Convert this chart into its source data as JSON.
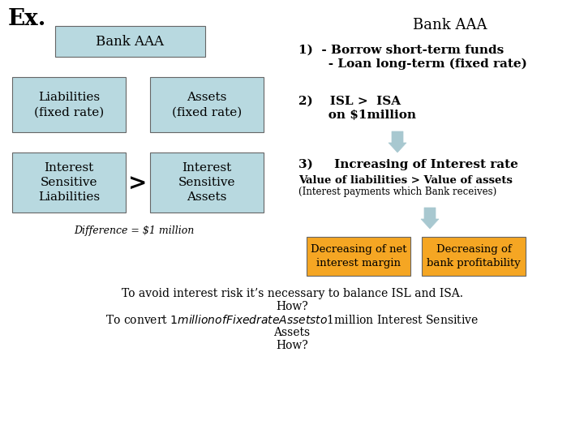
{
  "bg_color": "#ffffff",
  "box_color": "#b8d9e0",
  "orange_color": "#f5a623",
  "arrow_color": "#a8c8d0",
  "title_ex": "Ex.",
  "bank_aaa_box_text": "Bank AAA",
  "liabilities_fixed": "Liabilities\n(fixed rate)",
  "assets_fixed": "Assets\n(fixed rate)",
  "isl_text": "Interest\nSensitive\nLiabilities",
  "isa_text": "Interest\nSensitive\nAssets",
  "gt_symbol": ">",
  "difference_text": "Difference = $1 million",
  "bank_aaa_right": "Bank AAA",
  "point1a": "1)  - Borrow short-term funds",
  "point1b": "       - Loan long-term (fixed rate)",
  "point2a": "2)    ISL >  ISA",
  "point2b": "       on $1million",
  "point3": "3)     Increasing of Interest rate",
  "value_text": "Value of liabilities > Value of assets",
  "interest_payments": "(Interest payments which Bank receives)",
  "box1_text": "Decreasing of net\ninterest margin",
  "box2_text": "Decreasing of\nbank profitability",
  "bottom_text1": "To avoid interest risk it’s necessary to balance ISL and ISA.",
  "bottom_text2": "How?",
  "bottom_text3": "To convert $1million of Fixed rate Assets to $1million Interest Sensitive",
  "bottom_text4": "Assets",
  "bottom_text5": "How?"
}
